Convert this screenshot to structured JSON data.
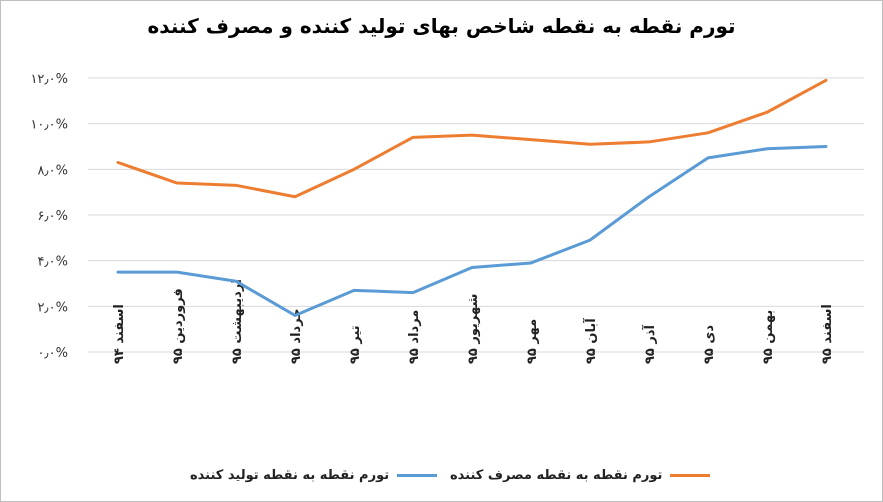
{
  "colors": {
    "series1": "#5b9bd5",
    "series2": "#ed7d31",
    "grid": "#d9d9d9"
  },
  "chart_data": {
    "type": "line",
    "title": "تورم نقطه به نقطه شاخص بهای تولید کننده و مصرف کننده",
    "categories": [
      "اسفند ۹۴",
      "فروردین ۹۵",
      "اردیبهشت ۹۵",
      "خرداد ۹۵",
      "تیر ۹۵",
      "مرداد ۹۵",
      "شهریور ۹۵",
      "مهر ۹۵",
      "آبان ۹۵",
      "آذر ۹۵",
      "دی ۹۵",
      "بهمن ۹۵",
      "اسفند ۹۵"
    ],
    "series": [
      {
        "name": "تورم نقطه به نقطه تولید کننده",
        "color": "#5b9bd5",
        "values": [
          3.5,
          3.5,
          3.1,
          1.6,
          2.7,
          2.6,
          3.7,
          3.9,
          4.9,
          6.8,
          8.5,
          8.9,
          9.0
        ]
      },
      {
        "name": "تورم نقطه به نقطه مصرف کننده",
        "color": "#ed7d31",
        "values": [
          8.3,
          7.4,
          7.3,
          6.8,
          8.0,
          9.4,
          9.5,
          9.3,
          9.1,
          9.2,
          9.6,
          10.5,
          11.9
        ]
      }
    ],
    "y_ticks": [
      "۰٫۰%",
      "۲٫۰%",
      "۴٫۰%",
      "۶٫۰%",
      "۸٫۰%",
      "۱۰٫۰%",
      "۱۲٫۰%"
    ],
    "ylim": [
      0,
      12
    ],
    "grid": true,
    "legend_position": "bottom"
  }
}
